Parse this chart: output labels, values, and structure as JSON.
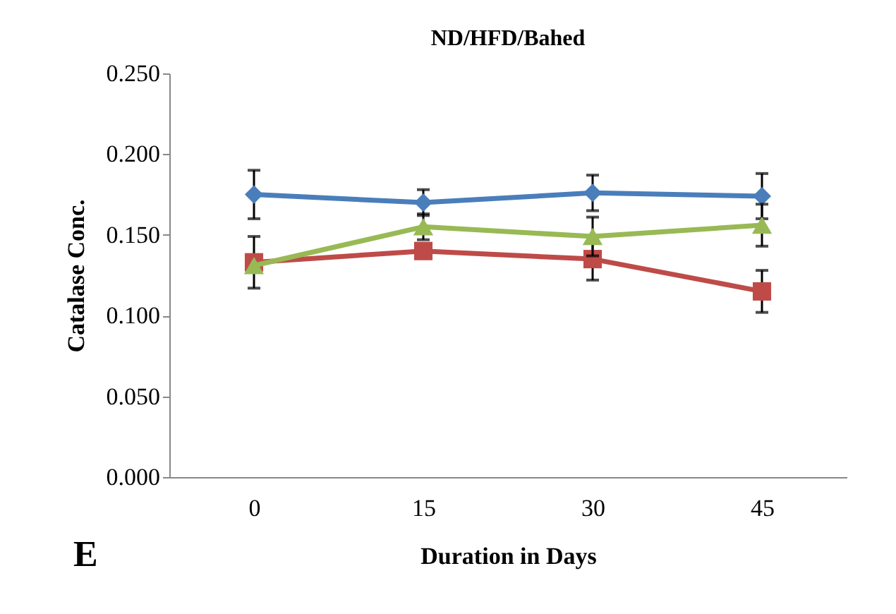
{
  "chart_data": {
    "type": "line",
    "title": "ND/HFD/Bahed",
    "xlabel": "Duration in Days",
    "ylabel": "Catalase Conc.",
    "categories": [
      "0",
      "15",
      "30",
      "45"
    ],
    "series": [
      {
        "color": "#4a7ebb",
        "marker": "diamond",
        "values": [
          0.175,
          0.17,
          0.176,
          0.174
        ],
        "errors": [
          0.015,
          0.008,
          0.011,
          0.014
        ]
      },
      {
        "color": "#be4b48",
        "marker": "square",
        "values": [
          0.133,
          0.14,
          0.135,
          0.115
        ],
        "errors": [
          0.016,
          null,
          0.013,
          0.013
        ]
      },
      {
        "color": "#98b954",
        "marker": "triangle",
        "values": [
          0.131,
          0.155,
          0.149,
          0.156
        ],
        "errors": [
          null,
          0.008,
          0.012,
          0.013
        ]
      }
    ],
    "ylim": [
      0,
      0.25
    ],
    "yticks": [
      {
        "value": 0,
        "label": "0.000"
      },
      {
        "value": 0.05,
        "label": "0.050"
      },
      {
        "value": 0.1,
        "label": "0.100"
      },
      {
        "value": 0.15,
        "label": "0.150"
      },
      {
        "value": 0.2,
        "label": "0.200"
      },
      {
        "value": 0.25,
        "label": "0.250"
      }
    ],
    "grid": false,
    "annotations": [
      "E"
    ]
  }
}
